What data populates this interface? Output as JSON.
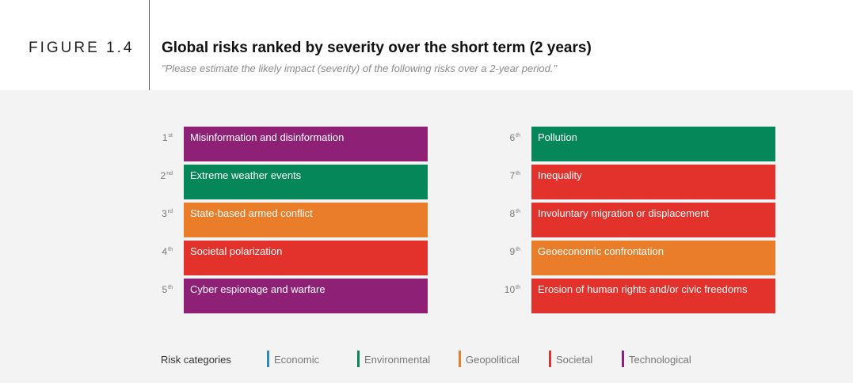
{
  "figure_label": "FIGURE 1.4",
  "title": "Global risks ranked by severity over the short term (2 years)",
  "subtitle": "\"Please estimate the likely impact (severity) of the following risks over a 2-year period.\"",
  "colors": {
    "Economic": "#2e86c8",
    "Environmental": "#06875a",
    "Geopolitical": "#ea7d29",
    "Societal": "#e3312c",
    "Technological": "#8e2176"
  },
  "chart_data": {
    "type": "table",
    "risks": [
      {
        "rank": "1",
        "suffix": "st",
        "label": "Misinformation and disinformation",
        "category": "Technological"
      },
      {
        "rank": "2",
        "suffix": "nd",
        "label": "Extreme weather events",
        "category": "Environmental"
      },
      {
        "rank": "3",
        "suffix": "rd",
        "label": "State-based armed conflict",
        "category": "Geopolitical"
      },
      {
        "rank": "4",
        "suffix": "th",
        "label": "Societal polarization",
        "category": "Societal"
      },
      {
        "rank": "5",
        "suffix": "th",
        "label": "Cyber espionage and warfare",
        "category": "Technological"
      },
      {
        "rank": "6",
        "suffix": "th",
        "label": "Pollution",
        "category": "Environmental"
      },
      {
        "rank": "7",
        "suffix": "th",
        "label": "Inequality",
        "category": "Societal"
      },
      {
        "rank": "8",
        "suffix": "th",
        "label": "Involuntary migration or displacement",
        "category": "Societal"
      },
      {
        "rank": "9",
        "suffix": "th",
        "label": "Geoeconomic confrontation",
        "category": "Geopolitical"
      },
      {
        "rank": "10",
        "suffix": "th",
        "label": "Erosion of human rights and/or civic freedoms",
        "category": "Societal"
      }
    ],
    "legend_title": "Risk categories",
    "legend": [
      "Economic",
      "Environmental",
      "Geopolitical",
      "Societal",
      "Technological"
    ]
  }
}
